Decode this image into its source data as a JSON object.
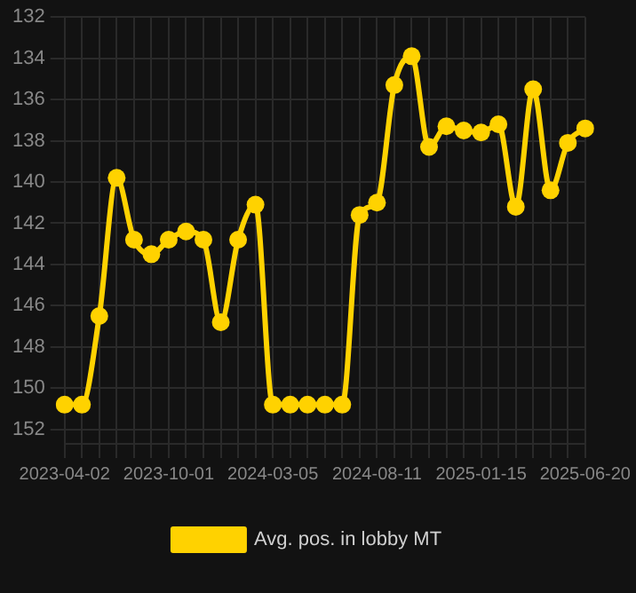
{
  "chart_data": {
    "type": "line",
    "categories": [
      "2023-04-02",
      null,
      null,
      null,
      null,
      null,
      "2023-10-01",
      null,
      null,
      null,
      null,
      null,
      "2024-03-05",
      null,
      null,
      null,
      null,
      null,
      "2024-08-11",
      null,
      null,
      null,
      null,
      null,
      "2025-01-15",
      null,
      null,
      null,
      null,
      null,
      "2025-06-20"
    ],
    "series": [
      {
        "name": "Avg. pos. in lobby MT",
        "color": "#ffd200",
        "values": [
          150.8,
          150.8,
          146.5,
          139.8,
          142.8,
          143.5,
          142.8,
          142.4,
          142.8,
          146.8,
          142.8,
          141.1,
          150.8,
          150.8,
          150.8,
          150.8,
          150.8,
          141.6,
          141.0,
          135.3,
          133.9,
          138.3,
          137.3,
          137.5,
          137.6,
          137.2,
          141.2,
          135.5,
          140.4,
          138.1,
          137.4
        ]
      }
    ],
    "ylim": [
      152.7,
      132
    ],
    "yticks": [
      132,
      134,
      136,
      138,
      140,
      142,
      144,
      146,
      148,
      150,
      152
    ],
    "grid": true,
    "legend": "bottom",
    "marker": "circle",
    "line_style": "solid"
  }
}
